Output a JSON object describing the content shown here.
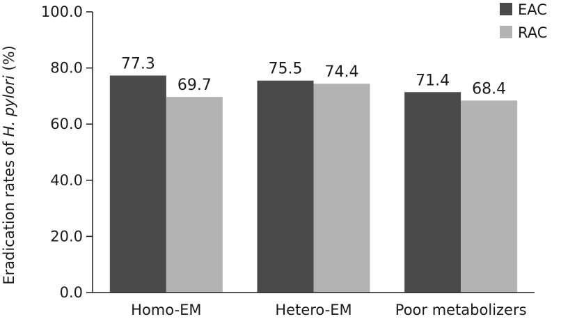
{
  "chart_data": {
    "type": "bar",
    "categories": [
      "Homo-EM",
      "Hetero-EM",
      "Poor metabolizers"
    ],
    "series": [
      {
        "name": "EAC",
        "values": [
          77.3,
          75.5,
          71.4
        ],
        "color": "#4a4a4a"
      },
      {
        "name": "RAC",
        "values": [
          69.7,
          74.4,
          68.4
        ],
        "color": "#b3b3b3"
      }
    ],
    "value_labels": [
      [
        "77.3",
        "75.5",
        "71.4"
      ],
      [
        "69.7",
        "74.4",
        "68.4"
      ]
    ],
    "ylabel": {
      "prefix": "Eradication rates of ",
      "italic": "H. pylori",
      "suffix": " (%)"
    },
    "ylim": [
      0,
      100
    ],
    "yticks": [
      "0.0",
      "20.0",
      "40.0",
      "60.0",
      "80.0",
      "100.0"
    ],
    "legend_position": "top-right",
    "grid": false
  }
}
